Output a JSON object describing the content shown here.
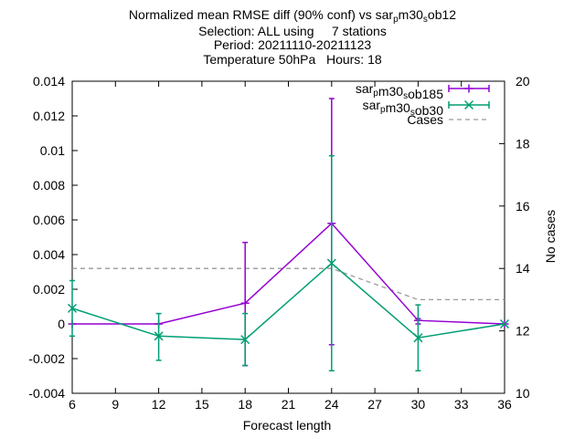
{
  "chart_data": {
    "type": "line",
    "title_lines": [
      {
        "pre": "Normalized mean RMSE diff (90% conf) vs sar",
        "sub": "p",
        "mid": "m30",
        "sub2": "s",
        "post": "ob12"
      },
      {
        "text": "Selection: ALL using     7 stations"
      },
      {
        "text": "Period: 20211110-20211123"
      },
      {
        "text": "Temperature 50hPa   Hours: 18"
      }
    ],
    "xlabel": "Forecast length",
    "ylabel_right": "No cases",
    "xlim": [
      6,
      36
    ],
    "ylim": [
      -0.004,
      0.014
    ],
    "y2lim": [
      10,
      20
    ],
    "x_ticks": [
      "6",
      "9",
      "12",
      "15",
      "18",
      "21",
      "24",
      "27",
      "30",
      "33",
      "36"
    ],
    "y_ticks": [
      "-0.004",
      "-0.002",
      "0",
      "0.002",
      "0.004",
      "0.006",
      "0.008",
      "0.01",
      "0.012",
      "0.014"
    ],
    "y2_ticks": [
      "10",
      "12",
      "14",
      "16",
      "18",
      "20"
    ],
    "legend_position": "top-right",
    "series": [
      {
        "name": "sar_p m30_s ob185",
        "legend": {
          "pre": "sar",
          "sub": "p",
          "mid": "m30",
          "sub2": "s",
          "post": "ob185"
        },
        "color": "#9400d3",
        "marker": "plus",
        "x": [
          6,
          12,
          18,
          24,
          30,
          36
        ],
        "y": [
          0.0,
          0.0,
          0.0012,
          0.0058,
          0.0002,
          0.0
        ],
        "err_low": [
          0.0,
          0.0,
          -0.0024,
          -0.0012,
          0.0,
          0.0
        ],
        "err_high": [
          0.0,
          0.0,
          0.0047,
          0.013,
          0.0003,
          0.0
        ]
      },
      {
        "name": "sar_p m30_s ob30",
        "legend": {
          "pre": "sar",
          "sub": "p",
          "mid": "m30",
          "sub2": "s",
          "post": "ob30"
        },
        "color": "#009e73",
        "marker": "cross",
        "x": [
          6,
          12,
          18,
          24,
          30,
          36
        ],
        "y": [
          0.0009,
          -0.0007,
          -0.0009,
          0.0035,
          -0.0008,
          0.0
        ],
        "err_low": [
          -0.0007,
          -0.0021,
          -0.0024,
          -0.0027,
          -0.0027,
          0.0
        ],
        "err_high": [
          0.0025,
          0.0006,
          0.0006,
          0.0097,
          0.0011,
          0.0
        ]
      }
    ],
    "cases": {
      "name": "Cases",
      "color": "#999999",
      "x": [
        6,
        12,
        18,
        24,
        30,
        36
      ],
      "y": [
        14,
        14,
        14,
        14,
        13,
        13
      ]
    }
  }
}
